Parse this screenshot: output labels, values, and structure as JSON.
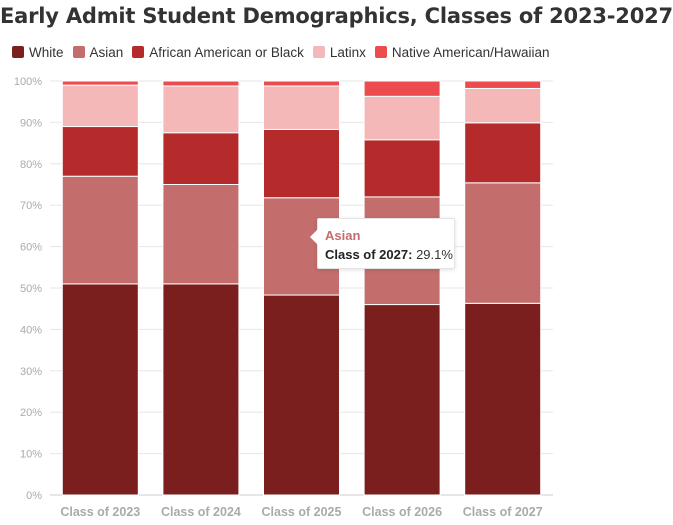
{
  "title": "Early Admit Student Demographics, Classes of 2023-2027",
  "colors": {
    "white": "#7a1e1e",
    "asian": "#c36d6d",
    "african_american": "#b52a2a",
    "latinx": "#f4b8b8",
    "native": "#ec4c4e",
    "grid": "#e6e6e6",
    "axis_text": "#aaaaaa"
  },
  "chart_data": {
    "type": "bar",
    "stacked": true,
    "title": "Early Admit Student Demographics, Classes of 2023-2027",
    "categories": [
      "Class of 2023",
      "Class of 2024",
      "Class of 2025",
      "Class of 2026",
      "Class of 2027"
    ],
    "y_ticks": [
      "0%",
      "10%",
      "20%",
      "30%",
      "40%",
      "50%",
      "60%",
      "70%",
      "80%",
      "90%",
      "100%"
    ],
    "ylim": [
      0,
      100
    ],
    "grid": true,
    "legend": "top-left",
    "series": [
      {
        "name": "White",
        "color": "#7a1e1e",
        "values": [
          51.0,
          51.0,
          48.3,
          46.0,
          46.3
        ]
      },
      {
        "name": "Asian",
        "color": "#c36d6d",
        "values": [
          26.0,
          24.0,
          23.5,
          26.0,
          29.1
        ]
      },
      {
        "name": "African American or Black",
        "color": "#b52a2a",
        "values": [
          12.0,
          12.5,
          16.5,
          13.8,
          14.5
        ]
      },
      {
        "name": "Latinx",
        "color": "#f4b8b8",
        "values": [
          10.0,
          11.3,
          10.5,
          10.5,
          8.3
        ]
      },
      {
        "name": "Native American/Hawaiian",
        "color": "#ec4c4e",
        "values": [
          1.0,
          1.2,
          1.2,
          3.7,
          1.8
        ]
      }
    ]
  },
  "tooltip": {
    "series": "Asian",
    "category": "Class of 2027:",
    "value": "29.1%"
  }
}
